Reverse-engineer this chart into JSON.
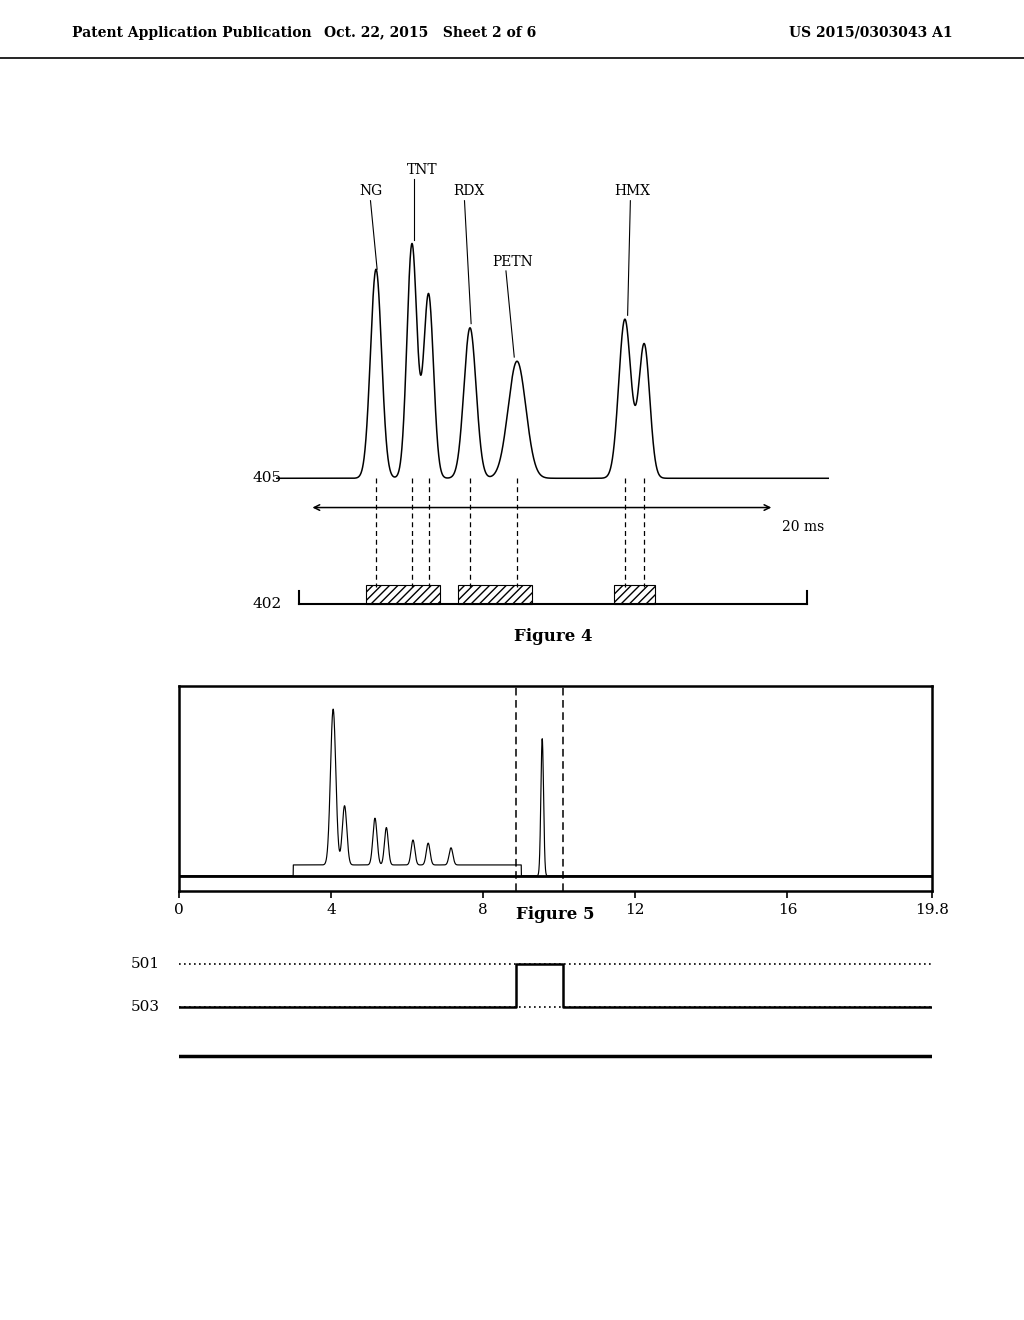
{
  "header_left": "Patent Application Publication",
  "header_center": "Oct. 22, 2015   Sheet 2 of 6",
  "header_right": "US 2015/0303043 A1",
  "fig4_label_405": "405",
  "fig4_label_402": "402",
  "fig4_20ms": "20 ms",
  "fig4_title": "Figure 4",
  "fig5_title": "Figure 5",
  "fig5_xlabel_vals": [
    "0",
    "4",
    "8",
    "12",
    "16",
    "19.8"
  ],
  "fig5_label_501": "501",
  "fig5_label_503": "503",
  "bg_color": "#ffffff",
  "line_color": "#000000"
}
